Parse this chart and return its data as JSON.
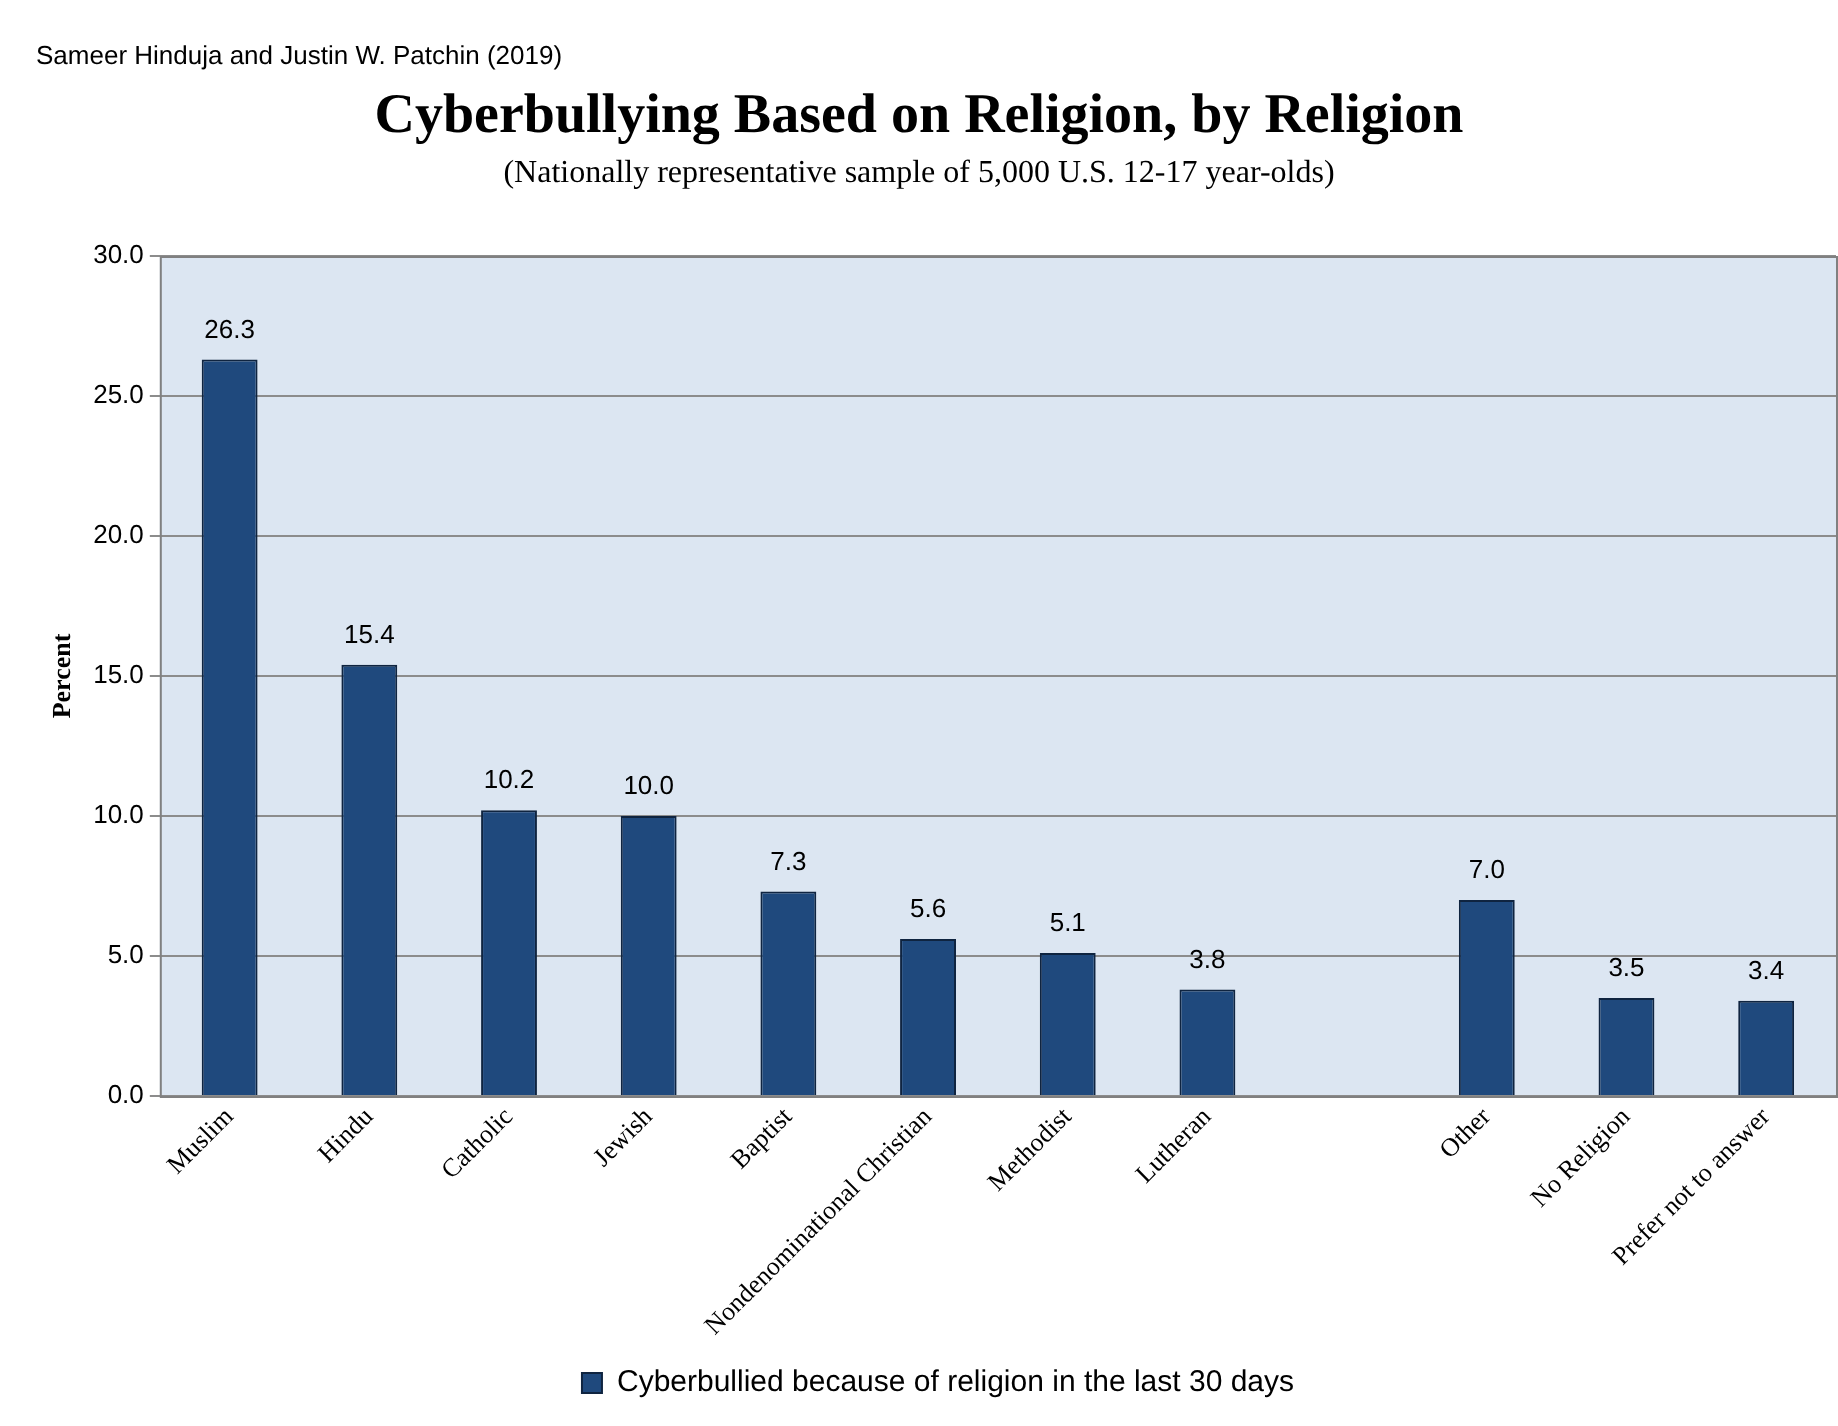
{
  "chart_data": {
    "type": "bar",
    "title": "Cyberbullying Based on Religion, by Religion",
    "subtitle": "(Nationally representative sample of 5,000 U.S. 12-17 year-olds)",
    "ylabel": "Percent",
    "annotations": [
      "Sameer Hinduja and Justin W. Patchin (2019)"
    ],
    "categories": [
      "Muslim",
      "Hindu",
      "Catholic",
      "Jewish",
      "Baptist",
      "Nondenominational Christian",
      "Methodist",
      "Lutheran",
      null,
      "Other",
      "No Religion",
      "Prefer not to answer"
    ],
    "series": [
      {
        "name": "Cyberbullied because of religion in the last 30 days",
        "color": "#1f497d",
        "values": [
          26.3,
          15.4,
          10.2,
          10.0,
          7.3,
          5.6,
          5.1,
          3.8,
          null,
          7.0,
          3.5,
          3.4
        ],
        "value_labels": [
          "26.3",
          "15.4",
          "10.2",
          "10.0",
          "7.3",
          "5.6",
          "5.1",
          "3.8",
          null,
          "7.0",
          "3.5",
          "3.4"
        ]
      }
    ],
    "ylim": [
      0,
      30
    ],
    "yticks": [
      {
        "value": 0,
        "label": "0.0"
      },
      {
        "value": 5,
        "label": "5.0"
      },
      {
        "value": 10,
        "label": "10.0"
      },
      {
        "value": 15,
        "label": "15.0"
      },
      {
        "value": 20,
        "label": "20.0"
      },
      {
        "value": 25,
        "label": "25.0"
      },
      {
        "value": 30,
        "label": "30.0"
      }
    ],
    "grid": "y",
    "legend": "bottom"
  }
}
